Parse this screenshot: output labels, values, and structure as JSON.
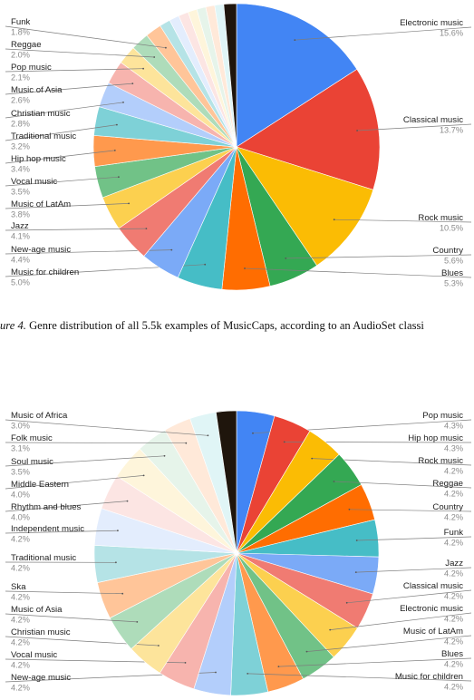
{
  "caption": {
    "label": "ure 4.",
    "text": "Genre distribution of all 5.5k examples of MusicCaps, according to an AudioSet classi"
  },
  "colors": {
    "leader": "#7d7d7d",
    "name_text": "#222222",
    "percent_text": "#8a8a8a"
  },
  "chart_data": [
    {
      "type": "pie",
      "title": "",
      "legend": "none",
      "slices": [
        {
          "name": "Electronic music",
          "label": "15.6%",
          "value": 15.6,
          "color": "#4285f4",
          "side": "right"
        },
        {
          "name": "Classical music",
          "label": "13.7%",
          "value": 13.7,
          "color": "#ea4335",
          "side": "right"
        },
        {
          "name": "Rock music",
          "label": "10.5%",
          "value": 10.5,
          "color": "#fbbc04",
          "side": "right"
        },
        {
          "name": "Country",
          "label": "5.6%",
          "value": 5.6,
          "color": "#34a853",
          "side": "right"
        },
        {
          "name": "Blues",
          "label": "5.3%",
          "value": 5.3,
          "color": "#ff6d01",
          "side": "right"
        },
        {
          "name": "Music for children",
          "label": "5.0%",
          "value": 5.0,
          "color": "#46bdc6",
          "side": "left"
        },
        {
          "name": "New-age music",
          "label": "4.4%",
          "value": 4.4,
          "color": "#7baaf7",
          "side": "left"
        },
        {
          "name": "Jazz",
          "label": "4.1%",
          "value": 4.1,
          "color": "#f07b72",
          "side": "left"
        },
        {
          "name": "Music of LatAm",
          "label": "3.8%",
          "value": 3.8,
          "color": "#fcd04f",
          "side": "left"
        },
        {
          "name": "Vocal music",
          "label": "3.5%",
          "value": 3.5,
          "color": "#71c287",
          "side": "left"
        },
        {
          "name": "Hip hop music",
          "label": "3.4%",
          "value": 3.4,
          "color": "#ff994d",
          "side": "left"
        },
        {
          "name": "Traditional music",
          "label": "3.2%",
          "value": 3.2,
          "color": "#7ed1d7",
          "side": "left"
        },
        {
          "name": "Christian music",
          "label": "2.8%",
          "value": 2.8,
          "color": "#b3cefb",
          "side": "left"
        },
        {
          "name": "Music of Asia",
          "label": "2.6%",
          "value": 2.6,
          "color": "#f7b4ae",
          "side": "left"
        },
        {
          "name": "Pop music",
          "label": "2.1%",
          "value": 2.1,
          "color": "#fde49b",
          "side": "left"
        },
        {
          "name": "Reggae",
          "label": "2.0%",
          "value": 2.0,
          "color": "#aedcba",
          "side": "left"
        },
        {
          "name": "Funk",
          "label": "1.8%",
          "value": 1.8,
          "color": "#ffc599",
          "side": "left"
        },
        {
          "name": "",
          "label": "",
          "value": 1.2,
          "color": "#b5e3e6",
          "side": "left"
        },
        {
          "name": "",
          "label": "",
          "value": 1.1,
          "color": "#e3edfd",
          "side": "left"
        },
        {
          "name": "",
          "label": "",
          "value": 1.1,
          "color": "#fce5e3",
          "side": "left"
        },
        {
          "name": "",
          "label": "",
          "value": 1.0,
          "color": "#fef5db",
          "side": "left"
        },
        {
          "name": "",
          "label": "",
          "value": 1.0,
          "color": "#e6f4ea",
          "side": "left"
        },
        {
          "name": "",
          "label": "",
          "value": 1.0,
          "color": "#ffe9d9",
          "side": "left"
        },
        {
          "name": "",
          "label": "",
          "value": 1.0,
          "color": "#e0f5f6",
          "side": "left"
        },
        {
          "name": "",
          "label": "",
          "value": 1.4,
          "color": "#1f150c",
          "side": "left"
        }
      ]
    },
    {
      "type": "pie",
      "title": "",
      "legend": "none",
      "slices": [
        {
          "name": "Pop music",
          "label": "4.3%",
          "value": 4.3,
          "color": "#4285f4",
          "side": "right"
        },
        {
          "name": "Hip hop music",
          "label": "4.3%",
          "value": 4.3,
          "color": "#ea4335",
          "side": "right"
        },
        {
          "name": "Rock music",
          "label": "4.2%",
          "value": 4.2,
          "color": "#fbbc04",
          "side": "right"
        },
        {
          "name": "Reggae",
          "label": "4.2%",
          "value": 4.2,
          "color": "#34a853",
          "side": "right"
        },
        {
          "name": "Country",
          "label": "4.2%",
          "value": 4.2,
          "color": "#ff6d01",
          "side": "right"
        },
        {
          "name": "Funk",
          "label": "4.2%",
          "value": 4.2,
          "color": "#46bdc6",
          "side": "right"
        },
        {
          "name": "Jazz",
          "label": "4.2%",
          "value": 4.2,
          "color": "#7baaf7",
          "side": "right"
        },
        {
          "name": "Classical music",
          "label": "4.2%",
          "value": 4.2,
          "color": "#f07b72",
          "side": "right"
        },
        {
          "name": "Electronic music",
          "label": "4.2%",
          "value": 4.2,
          "color": "#fcd04f",
          "side": "right"
        },
        {
          "name": "Music of LatAm",
          "label": "4.2%",
          "value": 4.2,
          "color": "#71c287",
          "side": "right"
        },
        {
          "name": "Blues",
          "label": "4.2%",
          "value": 4.2,
          "color": "#ff994d",
          "side": "right"
        },
        {
          "name": "Music for children",
          "label": "4.2%",
          "value": 4.2,
          "color": "#7ed1d7",
          "side": "right"
        },
        {
          "name": "New-age music",
          "label": "4.2%",
          "value": 4.2,
          "color": "#b3cefb",
          "side": "left"
        },
        {
          "name": "Vocal music",
          "label": "4.2%",
          "value": 4.2,
          "color": "#f7b4ae",
          "side": "left"
        },
        {
          "name": "Christian music",
          "label": "4.2%",
          "value": 4.2,
          "color": "#fde49b",
          "side": "left"
        },
        {
          "name": "Music of Asia",
          "label": "4.2%",
          "value": 4.2,
          "color": "#aedcba",
          "side": "left"
        },
        {
          "name": "Ska",
          "label": "4.2%",
          "value": 4.2,
          "color": "#ffc599",
          "side": "left"
        },
        {
          "name": "Traditional music",
          "label": "4.2%",
          "value": 4.2,
          "color": "#b5e3e6",
          "side": "left"
        },
        {
          "name": "Independent music",
          "label": "4.2%",
          "value": 4.2,
          "color": "#e3edfd",
          "side": "left"
        },
        {
          "name": "Rhythm and blues",
          "label": "4.0%",
          "value": 4.0,
          "color": "#fce5e3",
          "side": "left"
        },
        {
          "name": "Middle Eastern",
          "label": "4.0%",
          "value": 4.0,
          "color": "#fef5db",
          "side": "left"
        },
        {
          "name": "Soul music",
          "label": "3.5%",
          "value": 3.5,
          "color": "#e6f4ea",
          "side": "left"
        },
        {
          "name": "Folk music",
          "label": "3.1%",
          "value": 3.1,
          "color": "#ffe9d9",
          "side": "left"
        },
        {
          "name": "Music of Africa",
          "label": "3.0%",
          "value": 3.0,
          "color": "#e0f5f6",
          "side": "left"
        },
        {
          "name": "",
          "label": "",
          "value": 2.3,
          "color": "#1f150c",
          "side": "left"
        }
      ]
    }
  ]
}
